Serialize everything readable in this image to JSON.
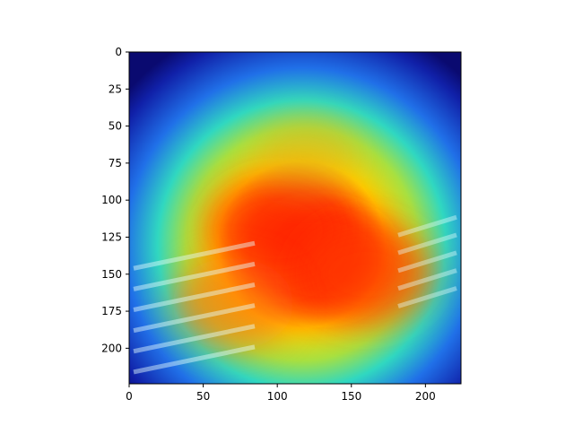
{
  "chart_data": {
    "type": "heatmap",
    "title": "",
    "xlabel": "",
    "ylabel": "",
    "xlim": [
      0,
      224
    ],
    "ylim": [
      224,
      0
    ],
    "x_ticks": [
      0,
      50,
      100,
      150,
      200
    ],
    "y_ticks": [
      0,
      25,
      50,
      75,
      100,
      125,
      150,
      175,
      200
    ],
    "grid": false,
    "colormap": "jet",
    "hotspots": [
      {
        "x": 130,
        "y": 140,
        "intensity": 1.0
      },
      {
        "x": 100,
        "y": 120,
        "intensity": 0.95
      },
      {
        "x": 160,
        "y": 150,
        "intensity": 0.9
      },
      {
        "x": 70,
        "y": 170,
        "intensity": 0.8
      },
      {
        "x": 120,
        "y": 70,
        "intensity": 0.6
      }
    ]
  }
}
